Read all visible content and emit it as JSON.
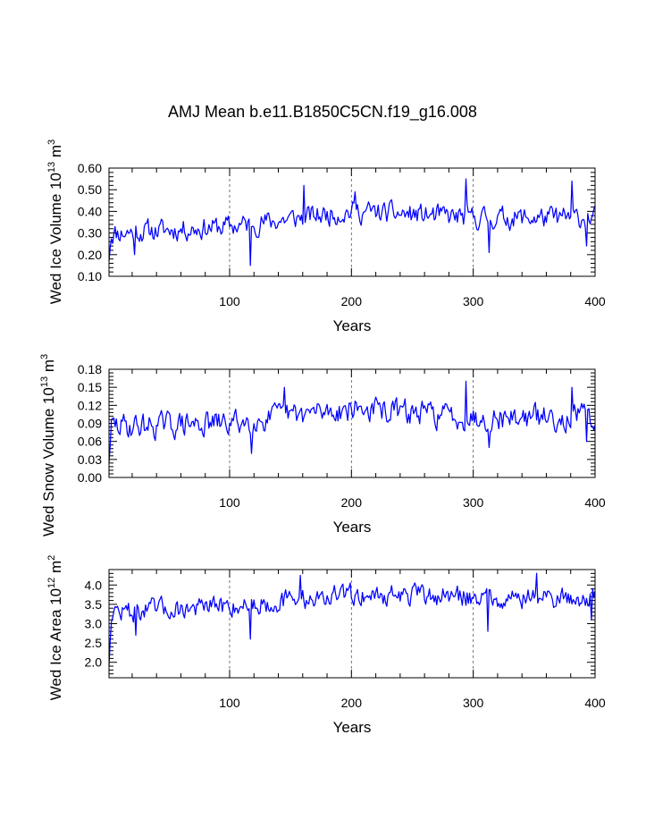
{
  "colors": {
    "series": "#0000ff",
    "axis": "#000000",
    "refline": "#555555"
  },
  "chart_data": [
    {
      "type": "line",
      "title": "AMJ Mean b.e11.B1850C5CN.f19_g16.008",
      "xlabel": "Years",
      "ylabel_main": "Wed Ice Volume 10",
      "ylabel_exp": "13",
      "ylabel_unit": " m",
      "ylabel_unit_exp": "3",
      "xlim": [
        1,
        400
      ],
      "ylim": [
        0.1,
        0.6
      ],
      "xticks": [
        100,
        200,
        300,
        400
      ],
      "yticks": [
        "0.10",
        "0.20",
        "0.30",
        "0.40",
        "0.50",
        "0.60"
      ],
      "ref_lines_x": [
        100,
        200,
        300
      ],
      "series": [
        {
          "name": "Wed Ice Volume",
          "segments": [
            {
              "x0": 1,
              "y": 0.17
            },
            {
              "x0": 3,
              "y": 0.3
            },
            {
              "x0": 100,
              "y": 0.33
            },
            {
              "x0": 200,
              "y": 0.4
            },
            {
              "x0": 300,
              "y": 0.37
            },
            {
              "x0": 400,
              "y": 0.37
            }
          ],
          "amp": 0.048,
          "seed": 11,
          "spikes": [
            [
              22,
              0.2
            ],
            [
              117,
              0.15
            ],
            [
              161,
              0.52
            ],
            [
              203,
              0.49
            ],
            [
              294,
              0.55
            ],
            [
              313,
              0.21
            ],
            [
              381,
              0.54
            ],
            [
              393,
              0.24
            ]
          ]
        }
      ]
    },
    {
      "type": "line",
      "title": "",
      "xlabel": "Years",
      "ylabel_main": "Wed Snow Volume 10",
      "ylabel_exp": "13",
      "ylabel_unit": " m",
      "ylabel_unit_exp": "3",
      "xlim": [
        1,
        400
      ],
      "ylim": [
        0.0,
        0.18
      ],
      "xticks": [
        100,
        200,
        300,
        400
      ],
      "yticks": [
        "0.00",
        "0.03",
        "0.06",
        "0.09",
        "0.12",
        "0.15",
        "0.18"
      ],
      "ref_lines_x": [
        100,
        200,
        300
      ],
      "series": [
        {
          "name": "Wed Snow Volume",
          "segments": [
            {
              "x0": 1,
              "y": 0.025
            },
            {
              "x0": 3,
              "y": 0.085
            },
            {
              "x0": 100,
              "y": 0.09
            },
            {
              "x0": 200,
              "y": 0.115
            },
            {
              "x0": 300,
              "y": 0.1
            },
            {
              "x0": 400,
              "y": 0.1
            }
          ],
          "amp": 0.02,
          "seed": 29,
          "spikes": [
            [
              118,
              0.04
            ],
            [
              145,
              0.15
            ],
            [
              294,
              0.16
            ],
            [
              313,
              0.05
            ],
            [
              381,
              0.15
            ],
            [
              393,
              0.06
            ]
          ]
        }
      ]
    },
    {
      "type": "line",
      "title": "",
      "xlabel": "Years",
      "ylabel_main": "Wed Ice Area 10",
      "ylabel_exp": "12",
      "ylabel_unit": " m",
      "ylabel_unit_exp": "2",
      "xlim": [
        1,
        400
      ],
      "ylim": [
        1.6,
        4.4
      ],
      "xticks": [
        100,
        200,
        300,
        400
      ],
      "yticks": [
        "2.0",
        "2.5",
        "3.0",
        "3.5",
        "4.0"
      ],
      "ref_lines_x": [
        100,
        200,
        300
      ],
      "series": [
        {
          "name": "Wed Ice Area",
          "segments": [
            {
              "x0": 1,
              "y": 1.9
            },
            {
              "x0": 3,
              "y": 3.3
            },
            {
              "x0": 100,
              "y": 3.45
            },
            {
              "x0": 200,
              "y": 3.75
            },
            {
              "x0": 300,
              "y": 3.7
            },
            {
              "x0": 400,
              "y": 3.65
            }
          ],
          "amp": 0.26,
          "seed": 47,
          "spikes": [
            [
              23,
              2.7
            ],
            [
              117,
              2.6
            ],
            [
              158,
              4.25
            ],
            [
              312,
              2.8
            ],
            [
              352,
              4.3
            ],
            [
              397,
              3.1
            ]
          ]
        }
      ]
    }
  ]
}
